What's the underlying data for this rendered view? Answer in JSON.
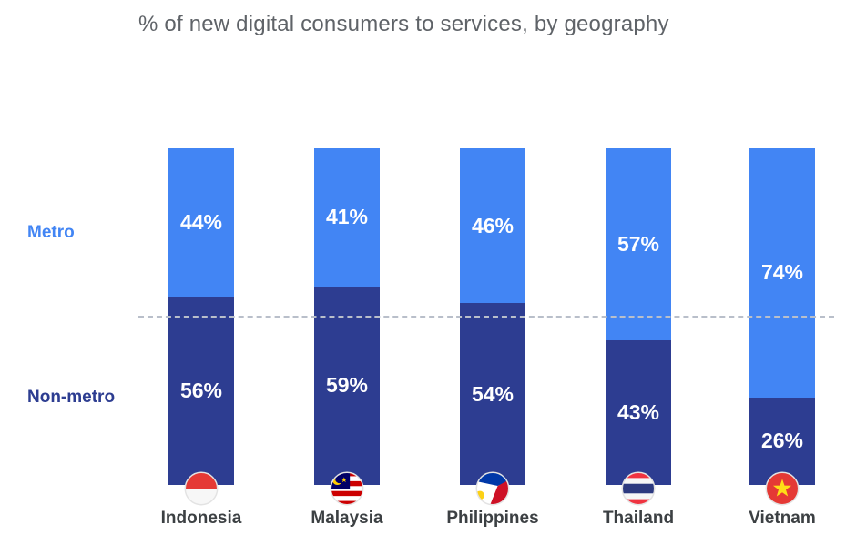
{
  "title": "% of new digital consumers to services, by geography",
  "legend": {
    "metro_label": "Metro",
    "non_metro_label": "Non-metro"
  },
  "colors": {
    "metro": "#4285f4",
    "non_metro": "#2d3d91",
    "title_text": "#5f6368",
    "country_text": "#3c4043",
    "dashed_line": "#b9bfca",
    "value_text": "#ffffff"
  },
  "chart_data": {
    "type": "bar",
    "subtype": "stacked-percent",
    "title": "% of new digital consumers to services, by geography",
    "categories": [
      "Indonesia",
      "Malaysia",
      "Philippines",
      "Thailand",
      "Vietnam"
    ],
    "series": [
      {
        "name": "Metro",
        "color": "#4285f4",
        "values": [
          44,
          41,
          46,
          57,
          74
        ]
      },
      {
        "name": "Non-metro",
        "color": "#2d3d91",
        "values": [
          56,
          59,
          54,
          43,
          26
        ]
      }
    ],
    "value_suffix": "%",
    "ylim": [
      0,
      100
    ],
    "grid": false,
    "legend_position": "left",
    "reference_line": {
      "value": 50,
      "style": "dashed"
    },
    "flag_icons": [
      "indonesia-flag-icon",
      "malaysia-flag-icon",
      "philippines-flag-icon",
      "thailand-flag-icon",
      "vietnam-flag-icon"
    ]
  }
}
